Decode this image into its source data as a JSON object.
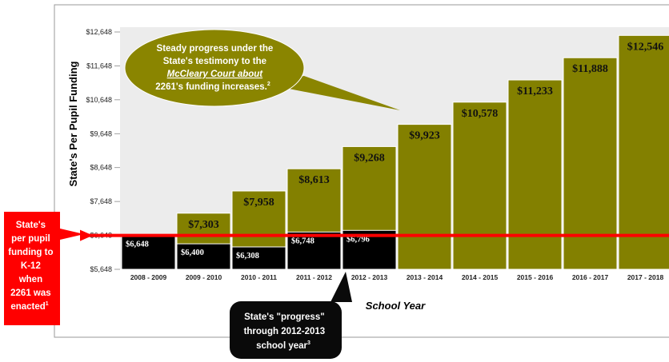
{
  "chart_data": {
    "type": "bar",
    "title": "",
    "xlabel": "School Year",
    "ylabel": "State's Per Pupil Funding",
    "ylim": [
      5648,
      12648
    ],
    "yticks": [
      "$5,648",
      "$6,648",
      "$7,648",
      "$8,648",
      "$9,648",
      "$10,648",
      "$11,648",
      "$12,648"
    ],
    "ytick_values": [
      5648,
      6648,
      7648,
      8648,
      9648,
      10648,
      11648,
      12648
    ],
    "categories": [
      "2008 - 2009",
      "2009 - 2010",
      "2010 - 2011",
      "2011 - 2012",
      "2012 - 2013",
      "2013 - 2014",
      "2014 - 2015",
      "2015 - 2016",
      "2016 - 2017",
      "2017 - 2018"
    ],
    "series": [
      {
        "values": [
          6648,
          7303,
          7958,
          8613,
          9268,
          9923,
          10578,
          11233,
          11888,
          12546
        ],
        "labels": [
          "",
          "$7,303",
          "$7,958",
          "$8,613",
          "$9,268",
          "$9,923",
          "$10,578",
          "$11,233",
          "$11,888",
          "$12,546"
        ],
        "color": "#838000"
      },
      {
        "values": [
          6648,
          6400,
          6308,
          6748,
          6796,
          null,
          null,
          null,
          null,
          null
        ],
        "labels": [
          "$6,648",
          "$6,400",
          "$6,308",
          "$6,748",
          "$6,796",
          "",
          "",
          "",
          "",
          ""
        ],
        "color": "#000000"
      }
    ],
    "reference_line": {
      "value": 6648,
      "color": "#ff0000"
    },
    "grid": false,
    "annotations": {
      "top_callout": [
        "Steady progress under the",
        "State's testimony to the",
        "McCleary Court about",
        "2261's funding increases.",
        "2"
      ],
      "left_callout": [
        "State's",
        "per pupil",
        "funding to",
        "K-12",
        "when",
        "2261 was",
        "enacted",
        "1"
      ],
      "bottom_callout": [
        "State's \"progress\"",
        "through 2012-2013",
        "school year",
        "3"
      ]
    },
    "colors": {
      "bar_olive": "#838000",
      "bar_black": "#000000",
      "plot_bg": "#ececec",
      "reference_red": "#ff0000",
      "callout_olive": "#8a8500",
      "callout_red": "#ff0000",
      "callout_black": "#0a0a0a"
    }
  }
}
